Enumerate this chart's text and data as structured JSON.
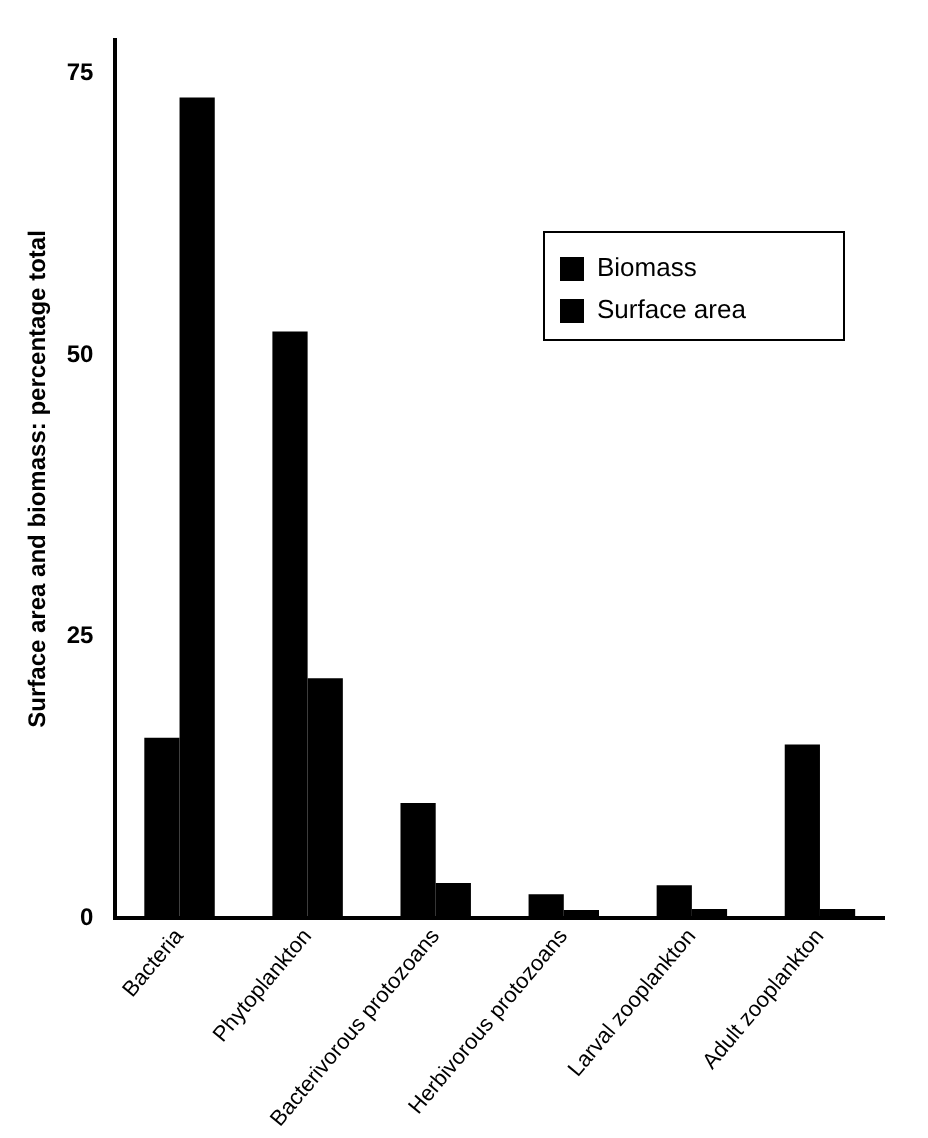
{
  "chart_data": {
    "type": "bar",
    "ylabel": "Surface area and biomass: percentage total",
    "categories": [
      "Bacteria",
      "Phytoplankton",
      "Bacterivorous protozoans",
      "Herbivorous protozoans",
      "Larval zooplankton",
      "Adult zooplankton"
    ],
    "series": [
      {
        "name": "Biomass",
        "color": "#000000",
        "values": [
          16,
          52.1,
          10.2,
          2.1,
          2.9,
          15.4
        ]
      },
      {
        "name": "Surface area",
        "color": "#000000",
        "values": [
          72.9,
          21.3,
          3.1,
          0.7,
          0.8,
          0.8
        ]
      }
    ],
    "ylim": [
      0,
      78
    ],
    "yticks": [
      0,
      25,
      50,
      75
    ],
    "grid": false,
    "legend": "top right"
  }
}
